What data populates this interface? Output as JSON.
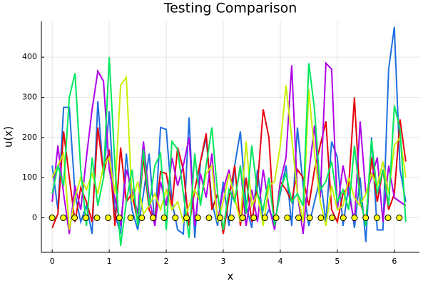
{
  "chart_data": {
    "type": "line",
    "title": "Testing Comparison",
    "xlabel": "x",
    "ylabel": "u(x)",
    "x": [
      0.0,
      0.1,
      0.2,
      0.3,
      0.4,
      0.5,
      0.6,
      0.7,
      0.8,
      0.9,
      1.0,
      1.1,
      1.2,
      1.3,
      1.4,
      1.5,
      1.6,
      1.7,
      1.8,
      1.9,
      2.0,
      2.1,
      2.2,
      2.3,
      2.4,
      2.5,
      2.6,
      2.7,
      2.8,
      2.9,
      3.0,
      3.1,
      3.2,
      3.3,
      3.4,
      3.5,
      3.6,
      3.7,
      3.8,
      3.9,
      4.0,
      4.1,
      4.2,
      4.3,
      4.4,
      4.5,
      4.6,
      4.7,
      4.8,
      4.9,
      5.0,
      5.1,
      5.2,
      5.3,
      5.4,
      5.5,
      5.6,
      5.7,
      5.8,
      5.9,
      6.0,
      6.1,
      6.2
    ],
    "series": [
      {
        "color": "#1f6fe0",
        "values": [
          130,
          20,
          275,
          275,
          60,
          -10,
          30,
          -40,
          290,
          100,
          265,
          10,
          -40,
          160,
          20,
          -30,
          60,
          160,
          -20,
          225,
          220,
          40,
          -30,
          -40,
          250,
          -50,
          140,
          200,
          40,
          -20,
          90,
          -20,
          130,
          215,
          30,
          -25,
          120,
          -10,
          20,
          -10,
          60,
          130,
          -20,
          225,
          80,
          -20,
          40,
          100,
          -10,
          190,
          150,
          -20,
          80,
          -25,
          100,
          -60,
          200,
          -30,
          -30,
          370,
          475,
          120,
          40
        ]
      },
      {
        "color": "#e8000b",
        "values": [
          -25,
          10,
          215,
          100,
          -10,
          75,
          40,
          -10,
          225,
          110,
          170,
          -20,
          175,
          40,
          60,
          -10,
          150,
          20,
          -10,
          115,
          110,
          30,
          175,
          120,
          -20,
          70,
          140,
          210,
          20,
          60,
          -40,
          50,
          130,
          -20,
          100,
          -10,
          80,
          270,
          200,
          -30,
          90,
          70,
          40,
          120,
          100,
          30,
          120,
          180,
          240,
          20,
          -10,
          60,
          80,
          300,
          40,
          -10,
          150,
          40,
          120,
          20,
          60,
          245,
          140
        ]
      },
      {
        "color": "#b000e8",
        "values": [
          40,
          180,
          60,
          -40,
          80,
          20,
          150,
          270,
          365,
          340,
          120,
          50,
          -20,
          120,
          70,
          10,
          190,
          50,
          -20,
          90,
          30,
          150,
          80,
          130,
          200,
          -20,
          110,
          50,
          160,
          -10,
          70,
          120,
          40,
          130,
          -20,
          70,
          -10,
          120,
          30,
          -30,
          90,
          150,
          380,
          60,
          -40,
          110,
          230,
          50,
          385,
          370,
          20,
          130,
          60,
          -10,
          240,
          60,
          100,
          150,
          -10,
          130,
          50,
          40,
          30
        ]
      },
      {
        "color": "#c8f000",
        "values": [
          100,
          130,
          160,
          -30,
          50,
          100,
          70,
          110,
          60,
          130,
          150,
          60,
          330,
          350,
          40,
          90,
          10,
          30,
          60,
          20,
          70,
          20,
          40,
          -10,
          30,
          70,
          40,
          110,
          130,
          -10,
          40,
          110,
          50,
          -10,
          190,
          30,
          60,
          -20,
          80,
          90,
          180,
          330,
          200,
          60,
          -10,
          320,
          160,
          40,
          -20,
          80,
          20,
          30,
          100,
          50,
          30,
          60,
          110,
          80,
          140,
          60,
          180,
          200,
          100
        ]
      },
      {
        "color": "#00e85c",
        "values": [
          60,
          130,
          80,
          300,
          360,
          120,
          -20,
          150,
          30,
          100,
          400,
          130,
          -70,
          40,
          120,
          -20,
          170,
          30,
          130,
          160,
          -30,
          190,
          170,
          60,
          -50,
          160,
          30,
          130,
          225,
          60,
          -30,
          70,
          40,
          130,
          10,
          180,
          60,
          20,
          100,
          -20,
          70,
          110,
          40,
          60,
          30,
          385,
          270,
          70,
          90,
          140,
          40,
          70,
          20,
          180,
          50,
          -20,
          195,
          60,
          120,
          30,
          280,
          220,
          -10
        ]
      }
    ],
    "points": {
      "color": "#ffff00",
      "x": [
        0,
        0.196,
        0.393,
        0.589,
        0.785,
        0.982,
        1.178,
        1.374,
        1.571,
        1.767,
        1.963,
        2.16,
        2.356,
        2.553,
        2.749,
        2.945,
        3.142,
        3.338,
        3.534,
        3.731,
        3.927,
        4.123,
        4.32,
        4.516,
        4.712,
        4.909,
        5.105,
        5.301,
        5.498,
        5.694,
        5.89,
        6.087
      ],
      "values": [
        0,
        0,
        0,
        0,
        0,
        0,
        0,
        0,
        0,
        0,
        0,
        0,
        0,
        0,
        0,
        0,
        0,
        0,
        0,
        0,
        0,
        0,
        0,
        0,
        0,
        0,
        0,
        0,
        0,
        0,
        0,
        0
      ]
    },
    "xlim": [
      -0.19,
      6.44
    ],
    "xticks": [
      0,
      1,
      2,
      3,
      4,
      5,
      6
    ],
    "ylim": [
      -86,
      489
    ],
    "yticks": [
      0,
      100,
      200,
      300,
      400
    ],
    "grid": true
  }
}
